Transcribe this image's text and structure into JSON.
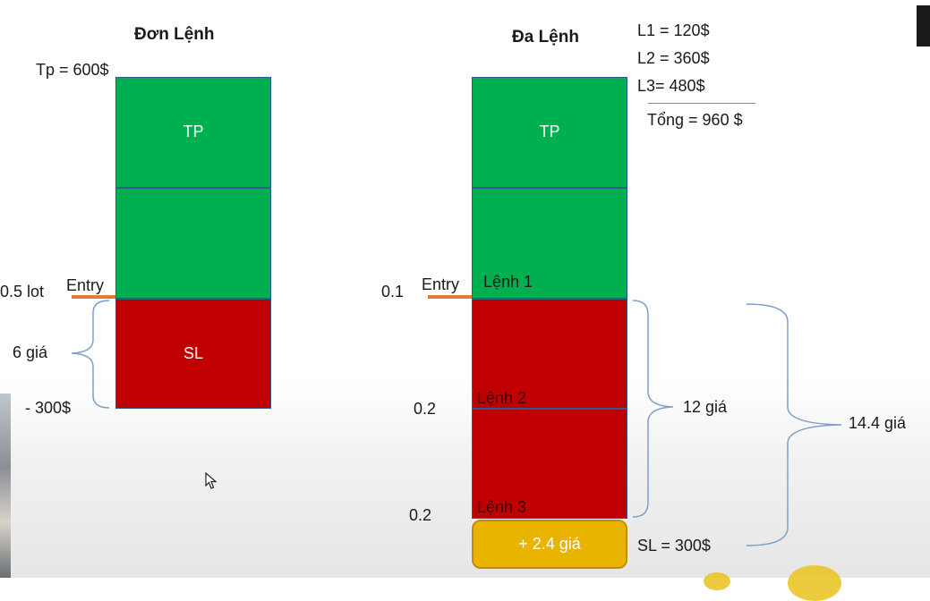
{
  "left": {
    "title": "Đơn Lệnh",
    "tp_value": "Tp = 600$",
    "tp_label": "TP",
    "sl_label": "SL",
    "lot": "0.5 lot",
    "entry": "Entry",
    "gia": "6 giá",
    "sl_value": "- 300$"
  },
  "right": {
    "title": "Đa Lệnh",
    "totals": [
      "L1 = 120$",
      "L2 = 360$",
      "L3= 480$"
    ],
    "sum": "Tổng = 960 $",
    "tp_label": "TP",
    "entry": "Entry",
    "orders": [
      {
        "lot": "0.1",
        "label": "Lệnh 1"
      },
      {
        "lot": "0.2",
        "label": "Lệnh 2"
      },
      {
        "lot": "0.2",
        "label": "Lệnh 3"
      }
    ],
    "gia_12": "12 giá",
    "gia_144": "14.4 giá",
    "extra": "+ 2.4 giá",
    "sl_value": "SL = 300$"
  },
  "colors": {
    "green": "#00b050",
    "red": "#c00000",
    "gold": "#e9b400",
    "entry_line": "#e07b39",
    "bracket": "#7f9fc6"
  }
}
